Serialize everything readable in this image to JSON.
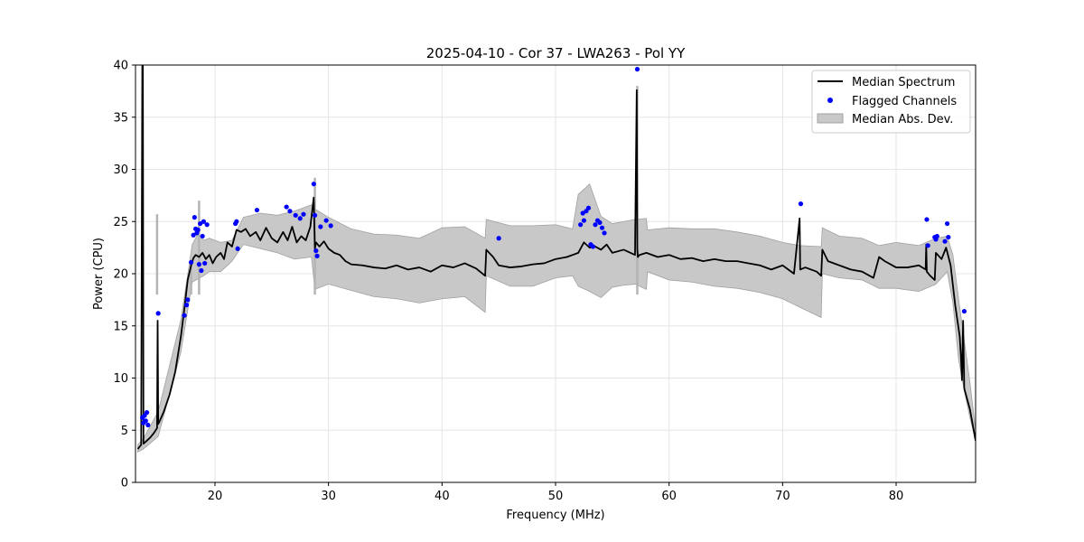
{
  "chart_data": {
    "type": "line",
    "title": "2025-04-10 - Cor 37 - LWA263 - Pol YY",
    "xlabel": "Frequency (MHz)",
    "ylabel": "Power (CPU)",
    "xlim": [
      13,
      87
    ],
    "ylim": [
      0,
      40
    ],
    "xticks": [
      20,
      30,
      40,
      50,
      60,
      70,
      80
    ],
    "yticks": [
      0,
      5,
      10,
      15,
      20,
      25,
      30,
      35,
      40
    ],
    "grid": true,
    "legend_position": "top-right",
    "colors": {
      "median": "#000000",
      "flagged": "#0000ff",
      "mad": "#c8c8c8",
      "mad_edge": "#a0a0a0"
    },
    "series": [
      {
        "name": "Median Spectrum",
        "kind": "line",
        "x": [
          13.2,
          13.5,
          13.6,
          13.65,
          13.7,
          13.8,
          14.0,
          14.3,
          14.6,
          14.9,
          14.95,
          15.0,
          15.1,
          15.5,
          16.0,
          16.5,
          17.0,
          17.3,
          17.6,
          17.9,
          18.1,
          18.3,
          18.6,
          18.9,
          19.2,
          19.5,
          19.8,
          20.1,
          20.5,
          20.8,
          21.1,
          21.5,
          21.9,
          22.3,
          22.7,
          23.1,
          23.6,
          24.0,
          24.5,
          25.0,
          25.5,
          26.0,
          26.4,
          26.8,
          27.2,
          27.6,
          28.0,
          28.4,
          28.7,
          28.8,
          28.9,
          29.2,
          29.6,
          30.0,
          30.5,
          31.0,
          31.5,
          32.0,
          33.0,
          34.0,
          35.0,
          36.0,
          37.0,
          38.0,
          39.0,
          40.0,
          41.0,
          42.0,
          43.0,
          43.8,
          43.9,
          44.5,
          45.0,
          46.0,
          47.0,
          48.0,
          49.0,
          50.0,
          51.0,
          52.0,
          52.5,
          53.0,
          53.5,
          54.0,
          54.5,
          55.0,
          56.0,
          57.0,
          57.15,
          57.2,
          57.25,
          57.4,
          58.0,
          59.0,
          60.0,
          61.0,
          62.0,
          63.0,
          64.0,
          65.0,
          66.0,
          67.0,
          68.0,
          69.0,
          70.0,
          71.0,
          71.5,
          71.55,
          72.0,
          73.0,
          73.4,
          73.5,
          74.0,
          75.0,
          76.0,
          77.0,
          78.0,
          78.5,
          79.0,
          80.0,
          81.0,
          82.0,
          82.6,
          82.65,
          82.7,
          83.0,
          83.4,
          83.5,
          84.0,
          84.4,
          84.8,
          85.2,
          85.6,
          85.7,
          85.8,
          85.9,
          86.0,
          86.5,
          87.0
        ],
        "y": [
          3.2,
          3.6,
          40.0,
          40.0,
          3.7,
          3.8,
          4.0,
          4.3,
          4.7,
          5.2,
          15.5,
          5.6,
          5.8,
          6.8,
          8.4,
          10.6,
          14.0,
          16.6,
          19.4,
          20.8,
          21.5,
          21.8,
          21.6,
          22.0,
          21.4,
          21.8,
          21.0,
          21.6,
          22.0,
          21.4,
          23.0,
          22.6,
          24.2,
          24.0,
          24.3,
          23.6,
          24.0,
          23.2,
          24.4,
          23.4,
          23.0,
          24.0,
          23.2,
          24.5,
          23.0,
          23.6,
          23.2,
          24.5,
          27.3,
          22.4,
          23.0,
          22.6,
          23.1,
          22.4,
          22.0,
          21.8,
          21.2,
          20.9,
          20.8,
          20.6,
          20.5,
          20.8,
          20.4,
          20.6,
          20.2,
          20.8,
          20.6,
          21.0,
          20.5,
          19.8,
          22.3,
          21.6,
          20.8,
          20.6,
          20.7,
          20.9,
          21.0,
          21.4,
          21.6,
          22.0,
          23.0,
          22.5,
          22.6,
          22.3,
          22.8,
          22.0,
          22.3,
          21.8,
          37.6,
          22.4,
          21.6,
          21.8,
          22.0,
          21.6,
          21.8,
          21.4,
          21.5,
          21.2,
          21.4,
          21.2,
          21.2,
          21.0,
          20.8,
          20.4,
          20.8,
          20.0,
          25.3,
          20.4,
          20.6,
          20.2,
          19.8,
          22.3,
          21.2,
          20.8,
          20.4,
          20.2,
          19.6,
          21.6,
          21.2,
          20.6,
          20.6,
          20.8,
          20.4,
          22.8,
          20.2,
          19.8,
          19.4,
          22.0,
          21.4,
          22.5,
          20.8,
          17.0,
          14.0,
          12.2,
          9.8,
          15.5,
          9.0,
          7.0,
          4.0
        ]
      },
      {
        "name": "Flagged Channels",
        "kind": "scatter",
        "x": [
          13.6,
          13.7,
          13.8,
          13.9,
          14.0,
          14.1,
          15.0,
          17.3,
          17.5,
          17.6,
          17.9,
          18.1,
          18.2,
          18.3,
          18.4,
          18.5,
          18.6,
          18.7,
          18.8,
          18.9,
          19.0,
          19.1,
          19.3,
          21.8,
          21.9,
          22.0,
          23.7,
          26.3,
          26.6,
          27.1,
          27.5,
          27.8,
          28.7,
          28.8,
          28.9,
          29.0,
          29.3,
          29.8,
          30.2,
          45.0,
          52.2,
          52.4,
          52.5,
          52.7,
          52.9,
          53.1,
          53.3,
          53.5,
          53.7,
          53.9,
          54.1,
          54.3,
          57.2,
          71.6,
          82.7,
          82.8,
          83.4,
          83.5,
          83.6,
          84.3,
          84.5,
          84.6,
          86.0
        ],
        "y": [
          6.2,
          5.7,
          6.4,
          5.9,
          6.7,
          5.5,
          16.2,
          16.0,
          17.0,
          17.5,
          21.1,
          23.7,
          25.4,
          24.3,
          23.9,
          24.2,
          20.9,
          24.8,
          20.3,
          23.6,
          25.0,
          21.0,
          24.7,
          24.8,
          25.0,
          22.4,
          26.1,
          26.4,
          26.0,
          25.6,
          25.3,
          25.7,
          28.6,
          25.6,
          22.2,
          21.7,
          24.5,
          25.1,
          24.6,
          23.4,
          24.7,
          25.8,
          25.1,
          26.0,
          26.3,
          22.8,
          22.6,
          24.7,
          25.1,
          24.9,
          24.4,
          23.9,
          39.6,
          26.7,
          25.2,
          22.7,
          23.5,
          23.3,
          23.6,
          23.1,
          24.8,
          23.5,
          16.4
        ]
      },
      {
        "name": "Median Abs. Dev.",
        "kind": "band",
        "x": [
          13.2,
          13.7,
          15.0,
          17.0,
          18.0,
          18.5,
          19.0,
          19.5,
          20.5,
          21.5,
          22.5,
          24.0,
          25.5,
          27.0,
          28.5,
          28.8,
          30.0,
          32.0,
          34.0,
          36.0,
          38.0,
          40.0,
          42.0,
          43.8,
          43.9,
          46.0,
          48.0,
          50.0,
          51.5,
          52.0,
          53.0,
          54.0,
          55.0,
          56.0,
          57.0,
          58.0,
          58.1,
          60.0,
          62.0,
          64.0,
          66.0,
          68.0,
          70.0,
          71.5,
          73.4,
          73.5,
          75.0,
          77.0,
          78.5,
          80.0,
          82.0,
          83.5,
          84.5,
          85.0,
          85.5,
          86.0,
          86.5,
          87.0
        ],
        "lower": [
          2.9,
          3.2,
          4.4,
          12.5,
          19.2,
          19.5,
          19.8,
          20.2,
          20.2,
          21.2,
          22.8,
          22.4,
          22.0,
          21.4,
          21.6,
          18.5,
          19.0,
          18.4,
          17.8,
          17.6,
          17.2,
          17.6,
          17.8,
          16.3,
          19.8,
          18.8,
          18.8,
          19.6,
          19.8,
          18.8,
          18.3,
          17.7,
          18.7,
          18.9,
          19.0,
          18.5,
          20.2,
          19.4,
          19.2,
          18.8,
          18.6,
          18.2,
          17.6,
          16.8,
          15.8,
          20.0,
          19.6,
          19.4,
          18.6,
          18.6,
          18.3,
          19.0,
          20.2,
          17.2,
          11.8,
          8.8,
          6.2,
          4.0
        ],
        "upper": [
          3.6,
          4.2,
          6.8,
          15.6,
          22.8,
          23.8,
          23.2,
          23.4,
          23.0,
          23.2,
          25.4,
          25.8,
          25.6,
          26.0,
          26.6,
          26.2,
          25.4,
          24.3,
          23.8,
          23.7,
          23.4,
          24.4,
          24.5,
          23.4,
          25.2,
          24.6,
          24.6,
          24.7,
          24.3,
          27.6,
          28.6,
          25.5,
          24.8,
          25.0,
          25.2,
          25.3,
          24.2,
          24.4,
          24.3,
          24.3,
          24.0,
          23.6,
          23.0,
          22.7,
          22.6,
          24.4,
          23.6,
          23.4,
          22.7,
          23.0,
          22.7,
          23.4,
          23.6,
          21.8,
          17.6,
          13.6,
          9.6,
          5.0
        ]
      }
    ],
    "isolated_spikes": [
      {
        "x": 14.9,
        "top": 25.7
      },
      {
        "x": 17.9,
        "top": 20.9
      },
      {
        "x": 18.6,
        "top": 27.0
      },
      {
        "x": 28.8,
        "top": 29.2
      },
      {
        "x": 57.2,
        "top": 38.0
      }
    ]
  }
}
